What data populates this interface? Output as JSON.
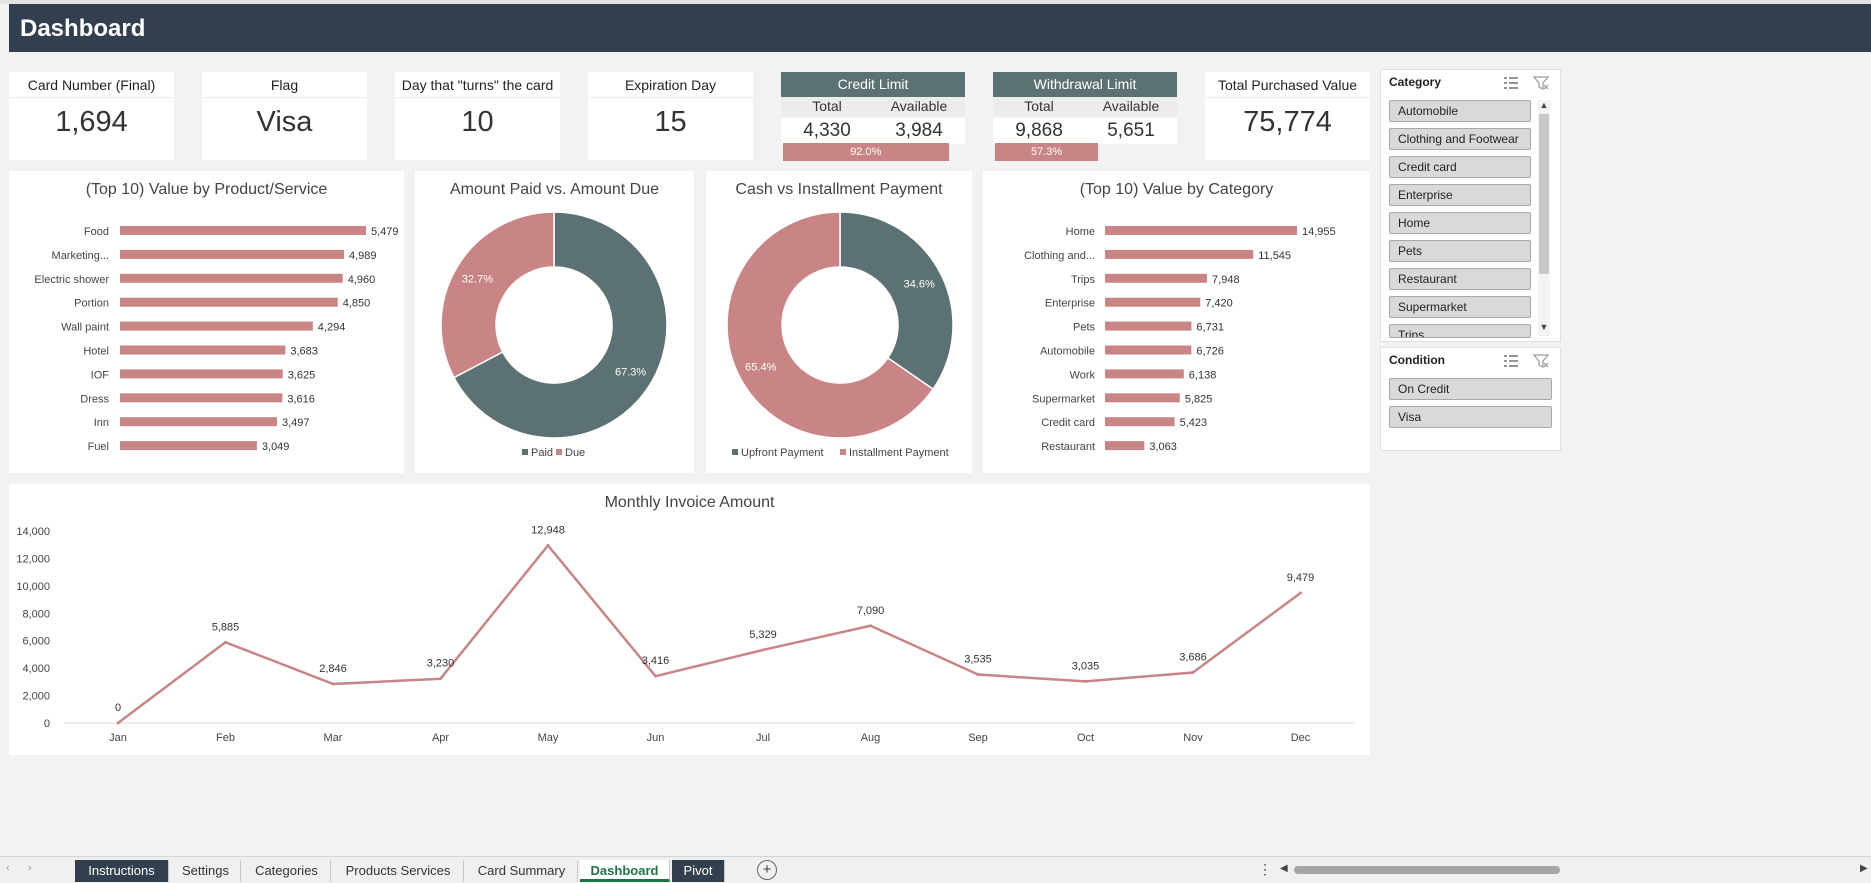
{
  "header": {
    "title": "Dashboard"
  },
  "kpis": {
    "card_number": {
      "label": "Card Number (Final)",
      "value": "1,694"
    },
    "flag": {
      "label": "Flag",
      "value": "Visa"
    },
    "turn_day": {
      "label": "Day that \"turns\" the card",
      "value": "10"
    },
    "expiration": {
      "label": "Expiration Day",
      "value": "15"
    },
    "total_purchased": {
      "label": "Total Purchased Value",
      "value": "75,774"
    }
  },
  "credit_limit": {
    "label": "Credit Limit",
    "total_label": "Total",
    "available_label": "Available",
    "total": "4,330",
    "available": "3,984",
    "used_pct_label": "92.0%",
    "used_fraction": 0.92
  },
  "withdrawal_limit": {
    "label": "Withdrawal Limit",
    "total_label": "Total",
    "available_label": "Available",
    "total": "9,868",
    "available": "5,651",
    "used_pct_label": "57.3%",
    "used_fraction": 0.573
  },
  "colors": {
    "header": "#323f4f",
    "teal": "#5c7173",
    "rose": "#c98585",
    "active_tab": "#217346"
  },
  "chart_data": [
    {
      "type": "bar",
      "title": "(Top 10) Value by Product/Service",
      "categories": [
        "Food",
        "Marketing...",
        "Electric shower",
        "Portion",
        "Wall paint",
        "Hotel",
        "IOF",
        "Dress",
        "Inn",
        "Fuel"
      ],
      "values": [
        5479,
        4989,
        4960,
        4850,
        4294,
        3683,
        3625,
        3616,
        3497,
        3049
      ],
      "value_labels": [
        "5,479",
        "4,989",
        "4,960",
        "4,850",
        "4,294",
        "3,683",
        "3,625",
        "3,616",
        "3,497",
        "3,049"
      ],
      "orientation": "horizontal",
      "color": "#c98585"
    },
    {
      "type": "pie",
      "title": "Amount Paid vs. Amount Due",
      "donut": true,
      "slices": [
        {
          "name": "Paid",
          "value": 67.3,
          "label": "67.3%",
          "color": "#5c7173"
        },
        {
          "name": "Due",
          "value": 32.7,
          "label": "32.7%",
          "color": "#c98585"
        }
      ],
      "legend": "bottom"
    },
    {
      "type": "pie",
      "title": "Cash vs Installment Payment",
      "donut": true,
      "slices": [
        {
          "name": "Upfront Payment",
          "value": 34.6,
          "label": "34.6%",
          "color": "#5c7173"
        },
        {
          "name": "Installment Payment",
          "value": 65.4,
          "label": "65.4%",
          "color": "#c98585"
        }
      ],
      "legend": "bottom"
    },
    {
      "type": "bar",
      "title": "(Top 10) Value by Category",
      "categories": [
        "Home",
        "Clothing and...",
        "Trips",
        "Enterprise",
        "Pets",
        "Automobile",
        "Work",
        "Supermarket",
        "Credit card",
        "Restaurant"
      ],
      "values": [
        14955,
        11545,
        7948,
        7420,
        6731,
        6726,
        6138,
        5825,
        5423,
        3063
      ],
      "value_labels": [
        "14,955",
        "11,545",
        "7,948",
        "7,420",
        "6,731",
        "6,726",
        "6,138",
        "5,825",
        "5,423",
        "3,063"
      ],
      "orientation": "horizontal",
      "color": "#c98585"
    },
    {
      "type": "line",
      "title": "Monthly Invoice Amount",
      "categories": [
        "Jan",
        "Feb",
        "Mar",
        "Apr",
        "May",
        "Jun",
        "Jul",
        "Aug",
        "Sep",
        "Oct",
        "Nov",
        "Dec"
      ],
      "values": [
        0,
        5885,
        2846,
        3230,
        12948,
        3416,
        5329,
        7090,
        3535,
        3035,
        3686,
        9479
      ],
      "value_labels": [
        "0",
        "5,885",
        "2,846",
        "3,230",
        "12,948",
        "3,416",
        "5,329",
        "7,090",
        "3,535",
        "3,035",
        "3,686",
        "9,479"
      ],
      "ylim": [
        0,
        14000
      ],
      "yticks": [
        "0",
        "2,000",
        "4,000",
        "6,000",
        "8,000",
        "10,000",
        "12,000",
        "14,000"
      ],
      "color": "#c98585"
    }
  ],
  "slicers": {
    "category": {
      "title": "Category",
      "items": [
        "Automobile",
        "Clothing and Footwear",
        "Credit card",
        "Enterprise",
        "Home",
        "Pets",
        "Restaurant",
        "Supermarket",
        "Trips"
      ]
    },
    "condition": {
      "title": "Condition",
      "items": [
        "On Credit",
        "Visa"
      ]
    }
  },
  "tabs": [
    "Instructions",
    "Settings",
    "Categories",
    "Products Services",
    "Card Summary",
    "Dashboard",
    "Pivot"
  ],
  "active_tab": "Dashboard"
}
